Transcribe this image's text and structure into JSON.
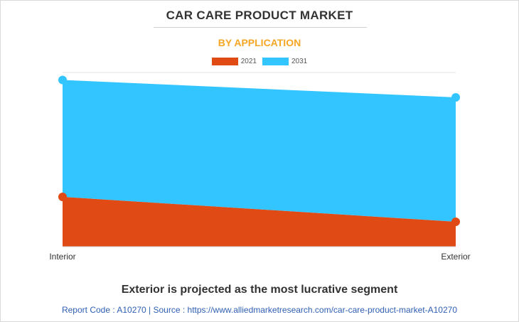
{
  "header": {
    "title": "CAR CARE PRODUCT MARKET",
    "subtitle": "BY APPLICATION"
  },
  "colors": {
    "subtitle": "#f5a623",
    "series_2021": "#e04a15",
    "series_2031": "#33c5ff",
    "gridline": "#e3e3e3"
  },
  "chart_data": {
    "type": "area",
    "categories": [
      "Interior",
      "Exterior"
    ],
    "series": [
      {
        "name": "2021",
        "values": [
          2.0,
          1.0
        ]
      },
      {
        "name": "2031",
        "values": [
          6.7,
          6.0
        ]
      }
    ],
    "ylim": [
      0,
      7
    ],
    "legend": "top-center",
    "grid": true
  },
  "footer": {
    "headline": "Exterior is projected as the most lucrative segment",
    "source": "Report Code : A10270  |  Source : https://www.alliedmarketresearch.com/car-care-product-market-A10270"
  }
}
